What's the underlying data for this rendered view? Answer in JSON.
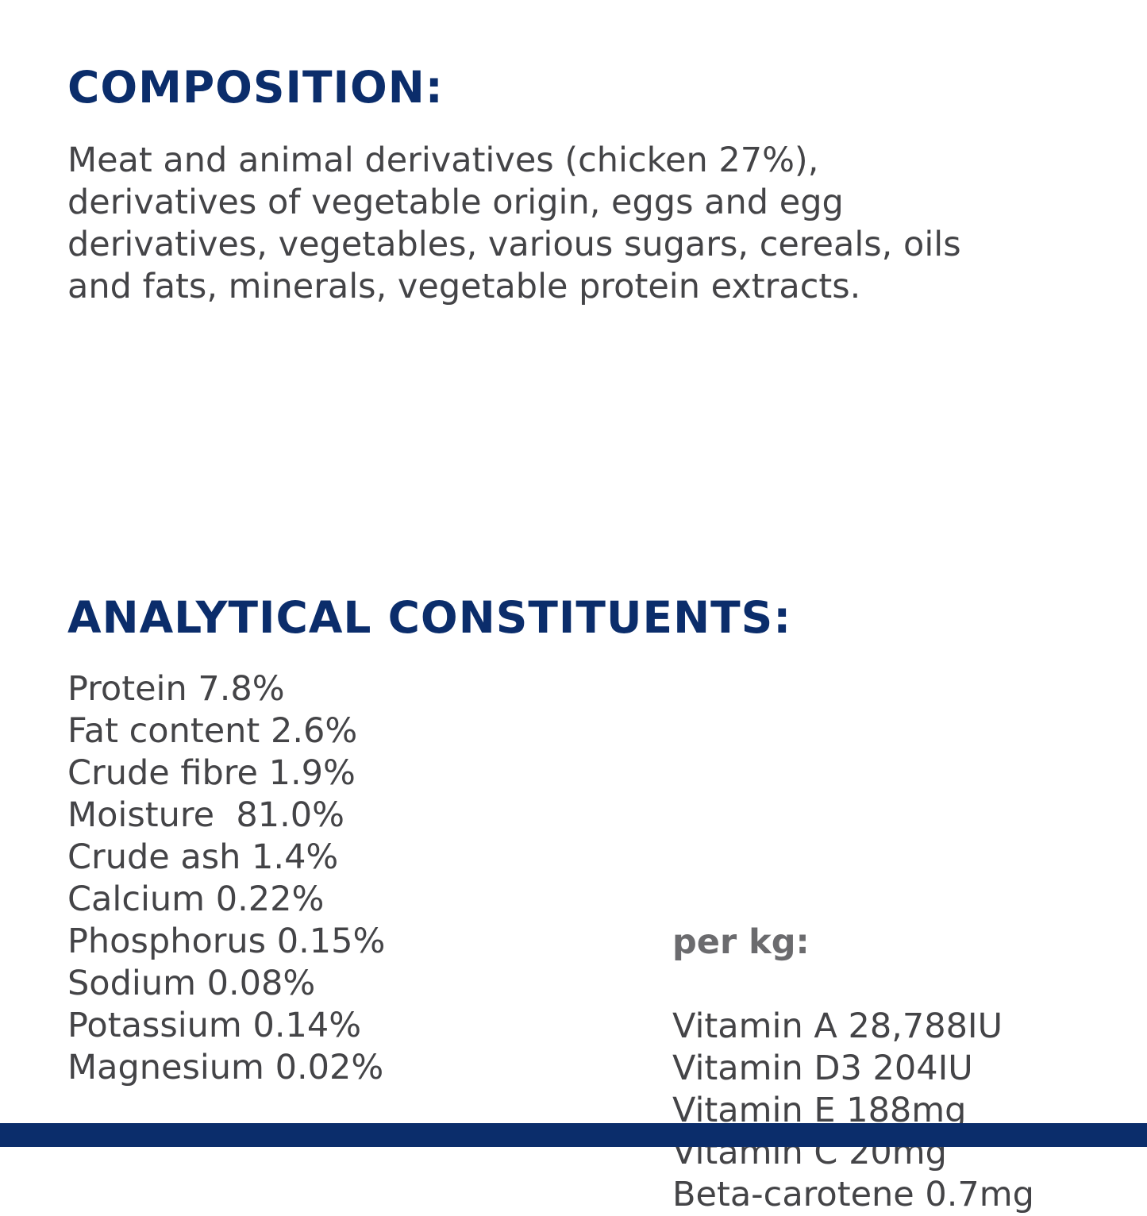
{
  "composition": {
    "title": "COMPOSITION:",
    "lines": [
      "Meat and animal derivatives (chicken 27%),",
      "derivatives of vegetable origin, eggs and egg",
      "derivatives, vegetables, various sugars, cereals, oils",
      "and fats, minerals, vegetable protein extracts."
    ]
  },
  "analytical": {
    "title": "ANALYTICAL CONSTITUENTS:",
    "items": [
      "Protein 7.8%",
      "Fat content 2.6%",
      "Crude fibre 1.9%",
      "Moisture  81.0%",
      "Crude ash 1.4%",
      "Calcium 0.22%",
      "Phosphorus 0.15%",
      "Sodium 0.08%",
      "Potassium 0.14%",
      "Magnesium 0.02%"
    ],
    "per_kg": {
      "title": "per kg:",
      "items": [
        "Vitamin A 28,788IU",
        "Vitamin D3 204IU",
        "Vitamin E 188mg",
        "Vitamin C 20mg",
        "Beta-carotene 0.7mg"
      ]
    }
  }
}
